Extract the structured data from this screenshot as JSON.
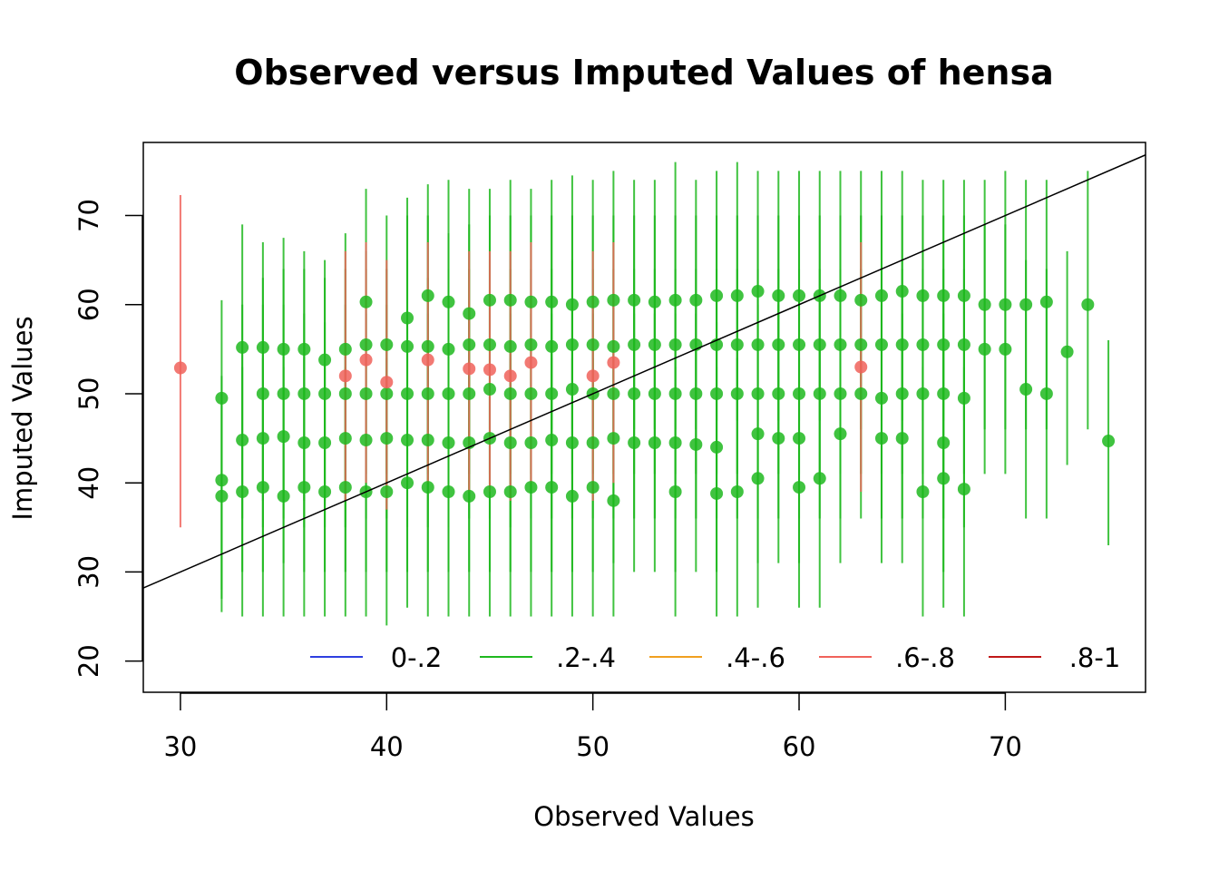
{
  "chart_data": {
    "type": "scatter",
    "title": "Observed versus Imputed Values of hensa",
    "xlabel": "Observed Values",
    "ylabel": "Imputed Values",
    "xlim": [
      28.2,
      76.8
    ],
    "ylim": [
      16.5,
      78.2
    ],
    "x_ticks": [
      30,
      40,
      50,
      60,
      70
    ],
    "y_ticks": [
      20,
      30,
      40,
      50,
      60,
      70
    ],
    "grid": false,
    "reference_line": {
      "slope": 1,
      "intercept": 0
    },
    "legend": {
      "placement": "bottom-right",
      "entries": [
        {
          "label": "0-.2",
          "color": "#2E3FE0"
        },
        {
          "label": ".2-.4",
          "color": "#1FB81F"
        },
        {
          "label": ".4-.6",
          "color": "#F0A020"
        },
        {
          "label": ".6-.8",
          "color": "#F0625A"
        },
        {
          "label": ".8-1",
          "color": "#C01818"
        }
      ]
    },
    "series": [
      {
        "name": ".2-.4",
        "color": "#1FB81F",
        "points": [
          [
            32,
            49.5,
            25.5,
            60.5
          ],
          [
            32,
            38.5,
            27,
            50
          ],
          [
            32,
            40.3,
            28,
            52
          ],
          [
            33,
            55.2,
            36,
            69
          ],
          [
            33,
            44.8,
            30,
            60
          ],
          [
            33,
            39,
            25,
            53
          ],
          [
            34,
            55.2,
            38,
            67
          ],
          [
            34,
            50,
            35,
            63
          ],
          [
            34,
            45,
            30,
            60
          ],
          [
            34,
            39.5,
            25,
            54
          ],
          [
            35,
            55,
            38,
            67.5
          ],
          [
            35,
            50,
            36,
            64
          ],
          [
            35,
            45.2,
            31,
            60
          ],
          [
            35,
            38.5,
            25,
            53
          ],
          [
            36,
            55,
            38,
            66
          ],
          [
            36,
            50,
            35,
            64
          ],
          [
            36,
            44.5,
            30,
            59
          ],
          [
            36,
            39.5,
            25,
            54
          ],
          [
            37,
            53.8,
            38,
            65
          ],
          [
            37,
            50,
            35,
            63
          ],
          [
            37,
            44.5,
            30,
            58
          ],
          [
            37,
            39,
            25,
            53
          ],
          [
            38,
            55,
            40,
            68
          ],
          [
            38,
            50,
            35,
            64
          ],
          [
            38,
            45,
            30,
            60
          ],
          [
            38,
            39.5,
            25,
            53
          ],
          [
            39,
            60.3,
            45,
            73
          ],
          [
            39,
            55.5,
            41,
            66
          ],
          [
            39,
            50,
            36,
            64
          ],
          [
            39,
            44.8,
            30,
            59
          ],
          [
            39,
            39,
            25,
            53
          ],
          [
            40,
            55.5,
            41,
            70
          ],
          [
            40,
            50,
            36,
            64
          ],
          [
            40,
            45,
            30,
            60
          ],
          [
            40,
            39,
            24,
            54
          ],
          [
            41,
            58.5,
            43,
            72
          ],
          [
            41,
            55.3,
            41,
            70
          ],
          [
            41,
            50,
            35,
            65
          ],
          [
            41,
            44.8,
            30,
            59
          ],
          [
            41,
            40,
            26,
            56
          ],
          [
            42,
            61,
            47,
            73.5
          ],
          [
            42,
            55.3,
            41,
            70
          ],
          [
            42,
            50,
            35,
            63
          ],
          [
            42,
            44.8,
            30,
            59
          ],
          [
            42,
            39.5,
            25,
            54
          ],
          [
            43,
            60.3,
            46,
            74
          ],
          [
            43,
            55,
            40,
            68
          ],
          [
            43,
            50,
            35,
            64
          ],
          [
            43,
            44.5,
            30,
            59
          ],
          [
            43,
            39,
            25,
            54
          ],
          [
            44,
            59,
            45,
            73
          ],
          [
            44,
            55.5,
            41,
            69
          ],
          [
            44,
            50,
            36,
            64
          ],
          [
            44,
            44.5,
            30,
            59
          ],
          [
            44,
            38.5,
            25,
            52
          ],
          [
            45,
            60.5,
            46,
            73
          ],
          [
            45,
            55.5,
            41,
            70
          ],
          [
            45,
            50.5,
            36,
            65
          ],
          [
            45,
            45,
            30,
            60
          ],
          [
            45,
            39,
            25,
            53
          ],
          [
            46,
            60.5,
            46,
            74
          ],
          [
            46,
            55.3,
            41,
            70
          ],
          [
            46,
            50,
            35,
            64
          ],
          [
            46,
            44.5,
            30,
            59
          ],
          [
            46,
            39,
            25,
            54
          ],
          [
            47,
            60.3,
            46,
            73
          ],
          [
            47,
            55.5,
            41,
            70
          ],
          [
            47,
            50,
            36,
            64
          ],
          [
            47,
            44.5,
            30,
            59
          ],
          [
            47,
            39.5,
            25,
            54
          ],
          [
            48,
            60.3,
            46,
            74
          ],
          [
            48,
            55.3,
            41,
            70
          ],
          [
            48,
            50,
            36,
            64
          ],
          [
            48,
            44.8,
            30,
            59
          ],
          [
            48,
            39.5,
            25,
            54
          ],
          [
            49,
            60,
            46,
            74.5
          ],
          [
            49,
            55.5,
            41,
            70
          ],
          [
            49,
            50.5,
            36,
            65
          ],
          [
            49,
            44.5,
            30,
            60
          ],
          [
            49,
            38.5,
            25,
            54
          ],
          [
            50,
            60.3,
            46,
            74
          ],
          [
            50,
            55.5,
            41,
            70
          ],
          [
            50,
            50,
            36,
            64
          ],
          [
            50,
            44.5,
            30,
            59
          ],
          [
            50,
            39.5,
            25,
            54
          ],
          [
            51,
            60.5,
            46,
            75
          ],
          [
            51,
            55.3,
            41,
            70
          ],
          [
            51,
            50,
            36,
            64
          ],
          [
            51,
            45,
            31,
            60
          ],
          [
            51,
            38,
            25,
            53
          ],
          [
            52,
            60.5,
            46,
            74
          ],
          [
            52,
            55.5,
            41,
            70
          ],
          [
            52,
            50,
            36,
            64
          ],
          [
            52,
            44.5,
            30,
            59
          ],
          [
            53,
            60.3,
            46,
            74
          ],
          [
            53,
            55.5,
            41,
            70
          ],
          [
            53,
            50,
            36,
            64
          ],
          [
            53,
            44.5,
            30,
            59
          ],
          [
            54,
            60.5,
            46,
            76
          ],
          [
            54,
            55.5,
            41,
            70
          ],
          [
            54,
            50,
            36,
            64
          ],
          [
            54,
            44.5,
            30,
            59
          ],
          [
            54,
            39,
            25,
            53
          ],
          [
            55,
            60.5,
            46,
            74
          ],
          [
            55,
            55.5,
            41,
            70
          ],
          [
            55,
            50,
            36,
            64
          ],
          [
            55,
            44.3,
            30,
            59
          ],
          [
            56,
            61,
            47,
            75
          ],
          [
            56,
            55.5,
            41,
            70
          ],
          [
            56,
            50,
            36,
            64
          ],
          [
            56,
            44,
            30,
            58
          ],
          [
            56,
            38.8,
            25,
            53
          ],
          [
            57,
            61,
            47,
            76
          ],
          [
            57,
            55.5,
            41,
            70
          ],
          [
            57,
            50,
            36,
            64
          ],
          [
            57,
            39,
            25,
            54
          ],
          [
            58,
            61.5,
            47,
            75
          ],
          [
            58,
            55.5,
            41,
            70
          ],
          [
            58,
            50,
            36,
            64
          ],
          [
            58,
            45.5,
            31,
            60
          ],
          [
            58,
            40.5,
            26,
            55
          ],
          [
            59,
            61,
            47,
            75
          ],
          [
            59,
            55.5,
            41,
            70
          ],
          [
            59,
            50,
            36,
            64
          ],
          [
            59,
            45,
            31,
            60
          ],
          [
            60,
            61,
            47,
            75
          ],
          [
            60,
            55.5,
            41,
            70
          ],
          [
            60,
            50,
            36,
            64
          ],
          [
            60,
            45,
            31,
            60
          ],
          [
            60,
            39.5,
            26,
            54
          ],
          [
            61,
            61,
            47,
            75
          ],
          [
            61,
            55.5,
            41,
            70
          ],
          [
            61,
            50,
            36,
            64
          ],
          [
            61,
            40.5,
            26,
            55
          ],
          [
            62,
            61,
            47,
            75
          ],
          [
            62,
            55.5,
            41,
            70
          ],
          [
            62,
            50,
            36,
            64
          ],
          [
            62,
            45.5,
            31,
            60
          ],
          [
            63,
            60.5,
            46,
            75
          ],
          [
            63,
            55.5,
            41,
            70
          ],
          [
            63,
            50,
            36,
            64
          ],
          [
            64,
            61,
            47,
            75
          ],
          [
            64,
            55.5,
            41,
            70
          ],
          [
            64,
            49.5,
            36,
            64
          ],
          [
            64,
            45,
            31,
            60
          ],
          [
            65,
            61.5,
            47,
            75
          ],
          [
            65,
            55.5,
            41,
            70
          ],
          [
            65,
            50,
            36,
            64
          ],
          [
            65,
            45,
            31,
            59
          ],
          [
            66,
            61,
            47,
            74
          ],
          [
            66,
            55.5,
            41,
            70
          ],
          [
            66,
            50,
            36,
            64
          ],
          [
            66,
            39,
            25,
            53
          ],
          [
            67,
            61,
            47,
            74
          ],
          [
            67,
            55.5,
            41,
            70
          ],
          [
            67,
            50,
            36,
            64
          ],
          [
            67,
            44.5,
            30,
            59
          ],
          [
            67,
            40.5,
            26,
            55
          ],
          [
            68,
            61,
            47,
            74
          ],
          [
            68,
            55.5,
            41,
            70
          ],
          [
            68,
            49.5,
            35,
            64
          ],
          [
            68,
            39.3,
            25,
            53
          ],
          [
            69,
            60,
            46,
            74
          ],
          [
            69,
            55,
            41,
            69
          ],
          [
            70,
            60,
            46,
            75
          ],
          [
            70,
            55,
            41,
            69
          ],
          [
            71,
            60,
            46,
            74
          ],
          [
            71,
            50.5,
            36,
            65
          ],
          [
            72,
            60.3,
            46,
            74
          ],
          [
            72,
            50,
            36,
            64
          ],
          [
            73,
            54.7,
            42,
            66
          ],
          [
            74,
            60,
            46,
            75
          ],
          [
            75,
            44.7,
            33,
            56
          ]
        ]
      },
      {
        "name": ".6-.8",
        "color": "#F0625A",
        "points": [
          [
            30,
            52.9,
            35,
            72.3
          ],
          [
            38,
            52,
            38,
            66
          ],
          [
            39,
            53.8,
            40,
            67
          ],
          [
            40,
            51.3,
            37,
            65
          ],
          [
            42,
            53.8,
            40,
            67
          ],
          [
            44,
            52.8,
            39,
            66
          ],
          [
            45,
            52.7,
            39,
            66
          ],
          [
            46,
            52,
            38,
            66
          ],
          [
            47,
            53.5,
            40,
            67
          ],
          [
            50,
            52,
            38,
            66
          ],
          [
            51,
            53.5,
            40,
            67
          ],
          [
            63,
            53,
            39,
            67
          ]
        ]
      }
    ]
  }
}
